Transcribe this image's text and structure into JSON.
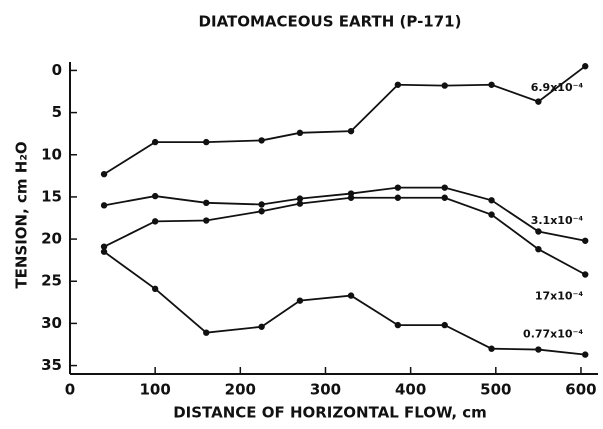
{
  "chart_data": {
    "type": "line",
    "title": "DIATOMACEOUS EARTH (P-171)",
    "x_label": "DISTANCE OF HORIZONTAL FLOW, cm",
    "y_label": "TENSION, cm H₂O",
    "x": [
      40,
      100,
      160,
      225,
      270,
      330,
      385,
      440,
      495,
      550,
      605
    ],
    "series": [
      {
        "name": "6.9x10⁻⁴",
        "color": "#111111",
        "values": [
          12.3,
          8.5,
          8.5,
          8.3,
          7.4,
          7.2,
          1.7,
          1.8,
          1.7,
          3.7,
          -0.5
        ]
      },
      {
        "name": "3.1x10⁻⁴",
        "color": "#111111",
        "values": [
          16.0,
          14.9,
          15.7,
          15.9,
          15.2,
          14.6,
          13.9,
          13.9,
          15.4,
          19.1,
          20.2
        ]
      },
      {
        "name": "17x10⁻⁴",
        "color": "#111111",
        "values": [
          20.9,
          17.9,
          17.8,
          16.7,
          15.8,
          15.1,
          15.1,
          15.1,
          17.1,
          21.2,
          24.2
        ]
      },
      {
        "name": "0.77x10⁻⁴",
        "color": "#111111",
        "values": [
          21.5,
          25.9,
          31.1,
          30.4,
          27.3,
          26.7,
          30.2,
          30.2,
          33.0,
          33.1,
          33.7
        ]
      }
    ],
    "xlim": [
      0,
      620
    ],
    "xticks": [
      0,
      100,
      200,
      300,
      400,
      500,
      600
    ],
    "ylim": [
      -1,
      36
    ],
    "yticks": [
      0,
      5,
      10,
      15,
      20,
      25,
      30,
      35
    ],
    "y_inverted": true
  }
}
